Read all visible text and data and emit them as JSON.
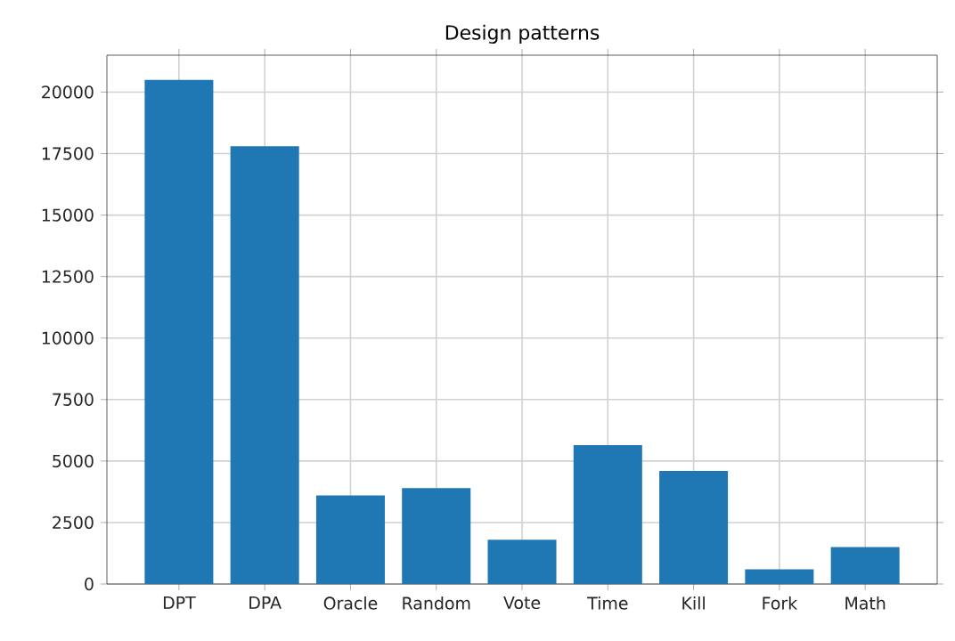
{
  "chart_data": {
    "type": "bar",
    "title": "Design patterns",
    "categories": [
      "DPT",
      "DPA",
      "Oracle",
      "Random",
      "Vote",
      "Time",
      "Kill",
      "Fork",
      "Math"
    ],
    "values": [
      20500,
      17800,
      3600,
      3900,
      1800,
      5650,
      4600,
      600,
      1500
    ],
    "color": "#1f77b4",
    "ylim": [
      0,
      21500
    ],
    "yticks": [
      0,
      2500,
      5000,
      7500,
      10000,
      12500,
      15000,
      17500,
      20000
    ],
    "grid": true
  }
}
